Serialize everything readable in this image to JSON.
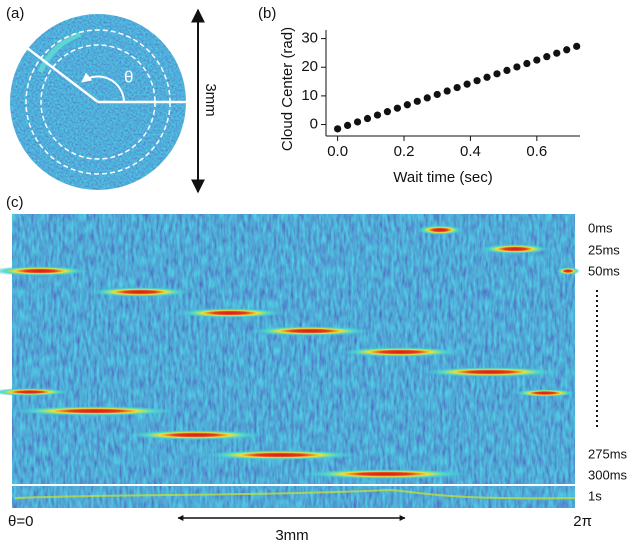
{
  "panels": {
    "a": "(a)",
    "b": "(b)",
    "c": "(c)"
  },
  "panel_a": {
    "angle_label": "θ",
    "scale_label": "3mm"
  },
  "chart_data": {
    "type": "scatter",
    "xlabel": "Wait time (sec)",
    "ylabel": "Cloud Center (rad)",
    "x": [
      0,
      0.03,
      0.06,
      0.09,
      0.12,
      0.15,
      0.18,
      0.21,
      0.24,
      0.27,
      0.3,
      0.33,
      0.36,
      0.39,
      0.42,
      0.45,
      0.48,
      0.51,
      0.54,
      0.57,
      0.6,
      0.63,
      0.66,
      0.69,
      0.72
    ],
    "values": [
      -1.5,
      -0.3,
      0.9,
      2.1,
      3.3,
      4.5,
      5.7,
      6.9,
      8.1,
      9.3,
      10.5,
      11.7,
      12.9,
      14.1,
      15.3,
      16.5,
      17.7,
      18.9,
      20.1,
      21.3,
      22.5,
      23.7,
      24.9,
      26.1,
      27.3
    ],
    "color": "#111111",
    "xlim": [
      -0.035,
      0.73
    ],
    "xticks": [
      {
        "value": 0,
        "label": "0.0"
      },
      0.2,
      0.4,
      0.6
    ],
    "ylim": [
      -4,
      33
    ],
    "yticks": [
      0,
      10,
      20,
      30
    ]
  },
  "panel_c": {
    "time_labels": [
      "0ms",
      "25ms",
      "50ms",
      "275ms",
      "300ms",
      "1s"
    ],
    "left_label": "θ=0",
    "right_label": "2π",
    "scale_label": "3mm"
  }
}
